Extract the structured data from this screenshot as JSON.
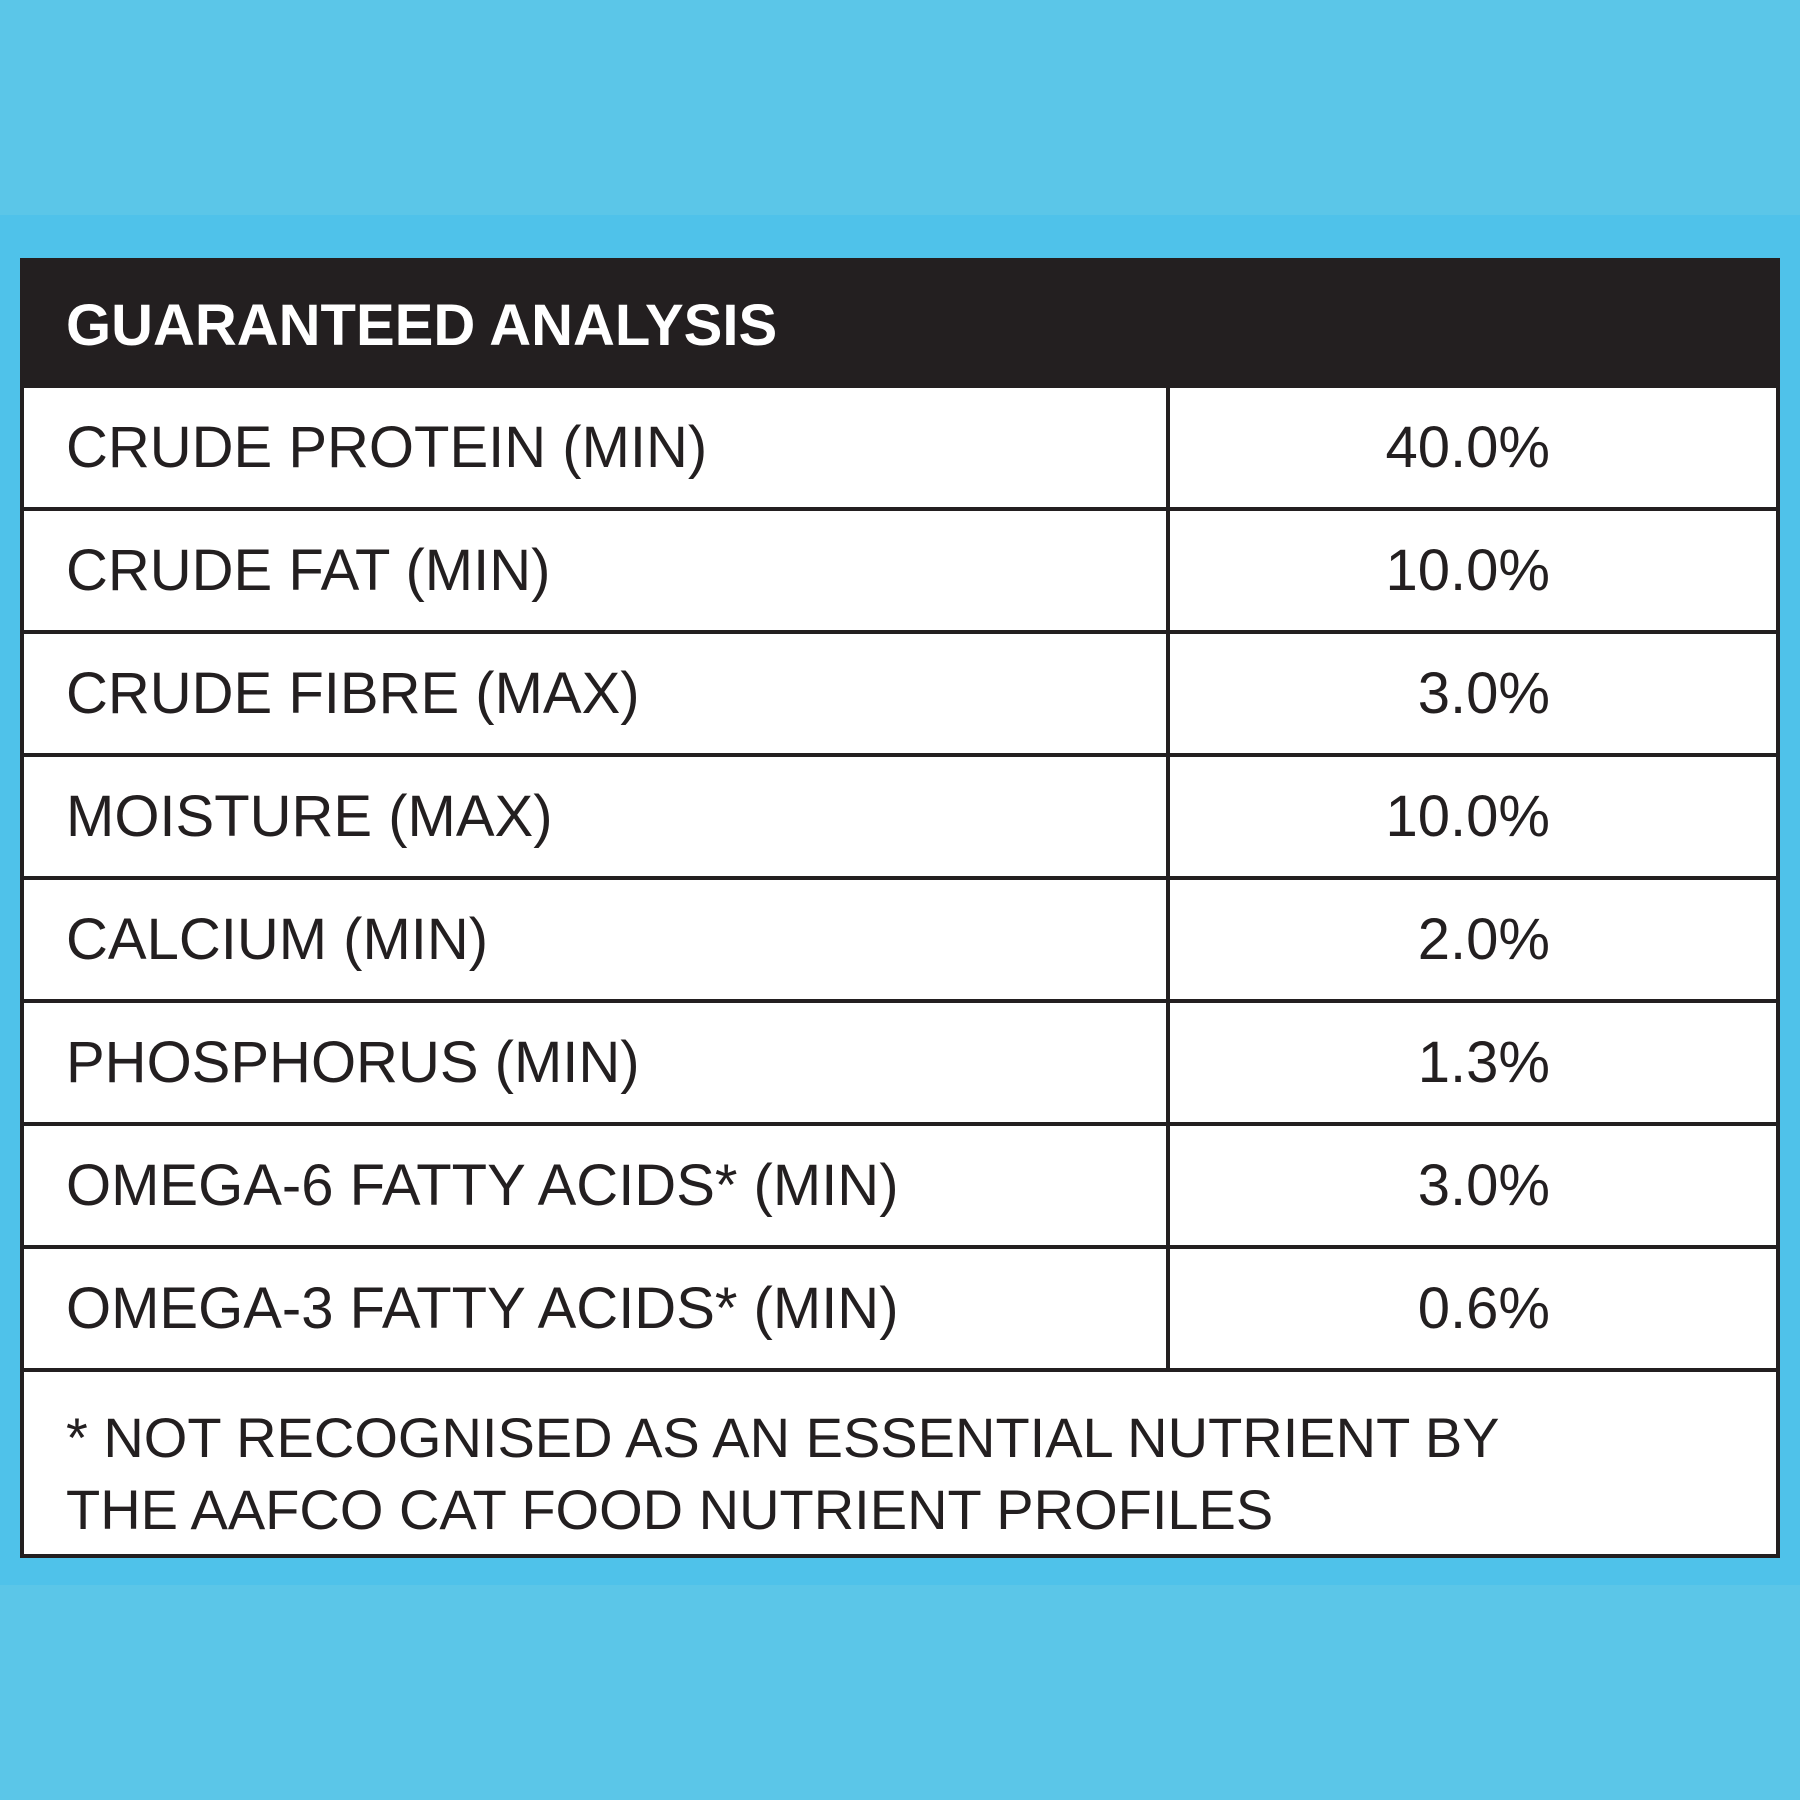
{
  "colors": {
    "background": "#5bc6e8",
    "band": "#4fc2ea",
    "panel": "#ffffff",
    "header_bg": "#231f20",
    "header_text": "#ffffff",
    "text": "#231f20"
  },
  "table": {
    "title": "GUARANTEED ANALYSIS",
    "rows": [
      {
        "label": "CRUDE PROTEIN (MIN)",
        "value": "40.0%"
      },
      {
        "label": "CRUDE FAT (MIN)",
        "value": "10.0%"
      },
      {
        "label": "CRUDE FIBRE (MAX)",
        "value": "3.0%"
      },
      {
        "label": "MOISTURE (MAX)",
        "value": "10.0%"
      },
      {
        "label": "CALCIUM (MIN)",
        "value": "2.0%"
      },
      {
        "label": "PHOSPHORUS (MIN)",
        "value": "1.3%"
      },
      {
        "label": "OMEGA-6 FATTY ACIDS* (MIN)",
        "value": "3.0%"
      },
      {
        "label": "OMEGA-3 FATTY ACIDS* (MIN)",
        "value": "0.6%"
      }
    ],
    "footnote_line1": "* NOT RECOGNISED AS AN ESSENTIAL NUTRIENT BY",
    "footnote_line2": "THE AAFCO CAT FOOD NUTRIENT PROFILES"
  }
}
